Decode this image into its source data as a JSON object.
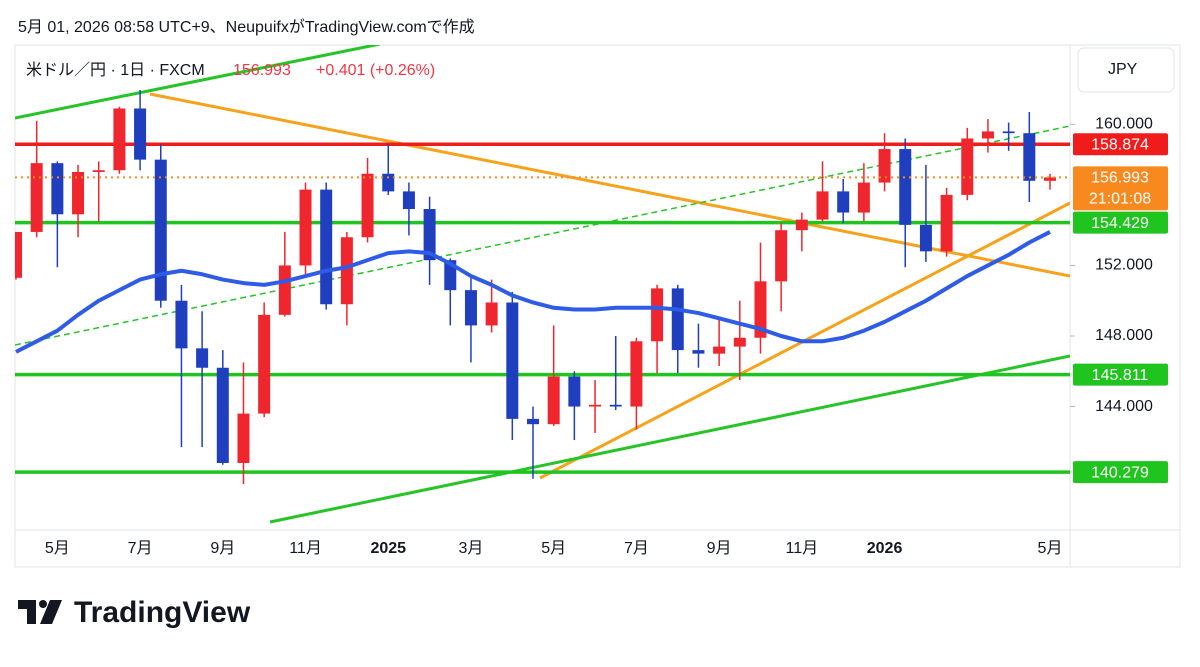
{
  "header": {
    "caption": "5月 01, 2026 08:58 UTC+9、NeupuifxがTradingView.comで作成",
    "logo": "TradingView"
  },
  "chart_data": {
    "type": "candlestick",
    "symbol": "米ドル／円 · 1日 · FXCM",
    "change": "+0.401 (+0.26%)",
    "currency": "JPY",
    "countdown": "21:01:08",
    "categories": [
      null,
      null,
      "5月",
      null,
      null,
      null,
      "7月",
      null,
      null,
      null,
      "9月",
      null,
      null,
      null,
      "11月",
      null,
      null,
      null,
      "2025",
      null,
      null,
      null,
      "3月",
      null,
      null,
      null,
      "5月",
      null,
      null,
      null,
      "7月",
      null,
      null,
      null,
      "9月",
      null,
      null,
      null,
      "11月",
      null,
      null,
      null,
      "2026",
      null,
      null,
      null,
      null,
      null,
      null,
      null,
      "5月"
    ],
    "open": [
      151.3,
      153.9,
      157.8,
      154.9,
      157.3,
      157.4,
      160.9,
      158.0,
      150.0,
      147.3,
      146.2,
      140.8,
      143.6,
      149.2,
      152.0,
      156.3,
      149.8,
      153.6,
      157.2,
      156.2,
      155.2,
      152.3,
      150.6,
      148.6,
      149.9,
      143.3,
      143.0,
      145.7,
      144.0,
      144.1,
      144.0,
      147.7,
      150.7,
      147.2,
      147.0,
      147.4,
      147.9,
      151.1,
      154.0,
      154.6,
      156.2,
      155.0,
      156.7,
      158.6,
      154.3,
      152.8,
      156.0,
      159.2,
      159.6,
      159.5,
      156.8
    ],
    "high": [
      153.9,
      160.2,
      157.9,
      157.7,
      157.9,
      161.0,
      161.95,
      158.9,
      150.9,
      149.4,
      147.2,
      146.5,
      149.9,
      153.9,
      156.7,
      156.7,
      153.9,
      158.1,
      158.9,
      156.7,
      155.9,
      152.4,
      151.3,
      151.2,
      150.5,
      144.0,
      148.6,
      146.0,
      145.5,
      148.0,
      147.9,
      150.9,
      150.9,
      148.7,
      149.1,
      150.0,
      153.3,
      154.4,
      155.0,
      157.9,
      156.9,
      157.8,
      159.5,
      159.2,
      157.7,
      156.4,
      159.8,
      160.3,
      160.1,
      160.7,
      157.2
    ],
    "low": [
      151.2,
      153.6,
      151.9,
      153.6,
      154.5,
      157.2,
      157.4,
      149.6,
      141.7,
      141.7,
      140.7,
      139.6,
      143.4,
      149.1,
      151.3,
      149.5,
      148.6,
      153.3,
      156.0,
      153.7,
      150.9,
      148.6,
      146.5,
      148.2,
      142.1,
      139.9,
      142.9,
      142.1,
      142.5,
      143.8,
      142.7,
      145.9,
      145.9,
      146.2,
      146.3,
      145.5,
      147.0,
      149.4,
      152.8,
      154.5,
      154.4,
      154.5,
      156.2,
      151.9,
      152.2,
      152.5,
      155.7,
      158.4,
      158.5,
      155.6,
      156.3
    ],
    "close": [
      153.9,
      157.8,
      154.9,
      157.3,
      157.4,
      160.9,
      158.0,
      150.0,
      147.3,
      146.2,
      140.8,
      143.6,
      149.2,
      152.0,
      156.3,
      149.8,
      153.6,
      157.2,
      156.2,
      155.2,
      152.3,
      150.6,
      148.6,
      149.9,
      143.3,
      143.0,
      145.7,
      144.0,
      144.1,
      144.0,
      147.7,
      150.7,
      147.2,
      147.0,
      147.4,
      147.9,
      151.1,
      154.0,
      154.6,
      156.2,
      155.0,
      156.7,
      158.6,
      154.3,
      152.8,
      156.0,
      159.2,
      159.6,
      159.5,
      156.8,
      156.993
    ],
    "up_color": "#f0262e",
    "down_color": "#1f3fbf",
    "moving_average": {
      "color": "#2e5ce6",
      "values": [
        147.1,
        147.7,
        148.3,
        149.2,
        150.0,
        150.6,
        151.2,
        151.5,
        151.7,
        151.5,
        151.2,
        151.0,
        150.9,
        151.1,
        151.4,
        151.7,
        151.9,
        152.3,
        152.7,
        152.8,
        152.7,
        152.1,
        151.4,
        150.9,
        150.3,
        149.9,
        149.6,
        149.5,
        149.5,
        149.6,
        149.6,
        149.6,
        149.5,
        149.3,
        149.0,
        148.7,
        148.4,
        148.0,
        147.7,
        147.7,
        147.9,
        148.3,
        148.8,
        149.4,
        150.0,
        150.7,
        151.4,
        152.0,
        152.6,
        153.3,
        153.9
      ]
    },
    "last_color": "#f7891f",
    "levels": [
      {
        "value": 158.874,
        "color": "#f01c1c"
      },
      {
        "value": 154.429,
        "color": "#1fc41f"
      },
      {
        "value": 145.811,
        "color": "#1fc41f"
      },
      {
        "value": 140.279,
        "color": "#1fc41f"
      }
    ],
    "ylim": [
      137,
      164.5
    ],
    "yticks": [
      {
        "value": 144,
        "label": "144.000"
      },
      {
        "value": 148,
        "label": "148.000"
      },
      {
        "value": 152,
        "label": "152.000"
      },
      {
        "value": 160,
        "label": "160.000"
      }
    ]
  }
}
